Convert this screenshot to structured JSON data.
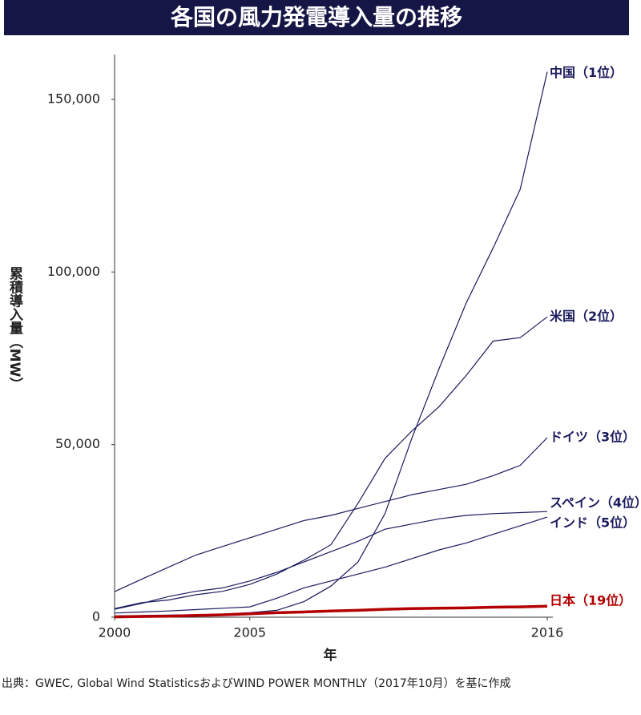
{
  "chart_data": {
    "type": "line",
    "title": "各国の風力発電導入量の推移",
    "y_label": "累積導入量（MW）",
    "x_label": "年",
    "source": "出典：GWEC, Global Wind StatisticsおよびWIND POWER MONTHLY（2017年10月）を基に作成",
    "x": [
      2000,
      2001,
      2002,
      2003,
      2004,
      2005,
      2006,
      2007,
      2008,
      2009,
      2010,
      2011,
      2012,
      2013,
      2014,
      2015,
      2016
    ],
    "xlim": [
      2000,
      2016
    ],
    "xticks": [
      2000,
      2005,
      2016
    ],
    "ylim": [
      0,
      163000
    ],
    "yticks": [
      0,
      {
        "value": 50000,
        "label": "50,000"
      },
      {
        "value": 100000,
        "label": "100,000"
      },
      {
        "value": 150000,
        "label": "150,000"
      }
    ],
    "series": [
      {
        "name": "中国（1位）",
        "color": "#1b1b5e",
        "values": [
          400,
          500,
          600,
          700,
          900,
          1300,
          2000,
          4500,
          9000,
          16000,
          30000,
          52000,
          72000,
          91000,
          107000,
          124000,
          158000
        ]
      },
      {
        "name": "米国（2位）",
        "color": "#1b1b5e",
        "values": [
          2500,
          4200,
          5000,
          6500,
          7500,
          9500,
          12500,
          16500,
          21000,
          33000,
          46000,
          54000,
          61000,
          70000,
          80000,
          81000,
          87000
        ]
      },
      {
        "name": "ドイツ（3位）",
        "color": "#1b1b5e",
        "values": [
          7400,
          11000,
          14500,
          18000,
          20500,
          23000,
          25500,
          28000,
          29500,
          31500,
          33500,
          35500,
          37000,
          38500,
          41000,
          44000,
          52000
        ]
      },
      {
        "name": "スペイン（4位）",
        "color": "#1b1b5e",
        "values": [
          2300,
          4000,
          6000,
          7500,
          8500,
          10500,
          13000,
          16000,
          19000,
          22000,
          25500,
          27000,
          28500,
          29500,
          30000,
          30300,
          30600
        ]
      },
      {
        "name": "インド（5位）",
        "color": "#1b1b5e",
        "values": [
          1200,
          1500,
          1800,
          2200,
          2600,
          3000,
          5500,
          8500,
          10500,
          12500,
          14500,
          17000,
          19500,
          21500,
          24000,
          26500,
          29000
        ]
      },
      {
        "name": "日本（19位）",
        "color": "#b30000",
        "values": [
          100,
          200,
          300,
          500,
          700,
          1000,
          1300,
          1500,
          1800,
          2000,
          2300,
          2500,
          2600,
          2700,
          2900,
          3000,
          3200
        ]
      }
    ]
  }
}
